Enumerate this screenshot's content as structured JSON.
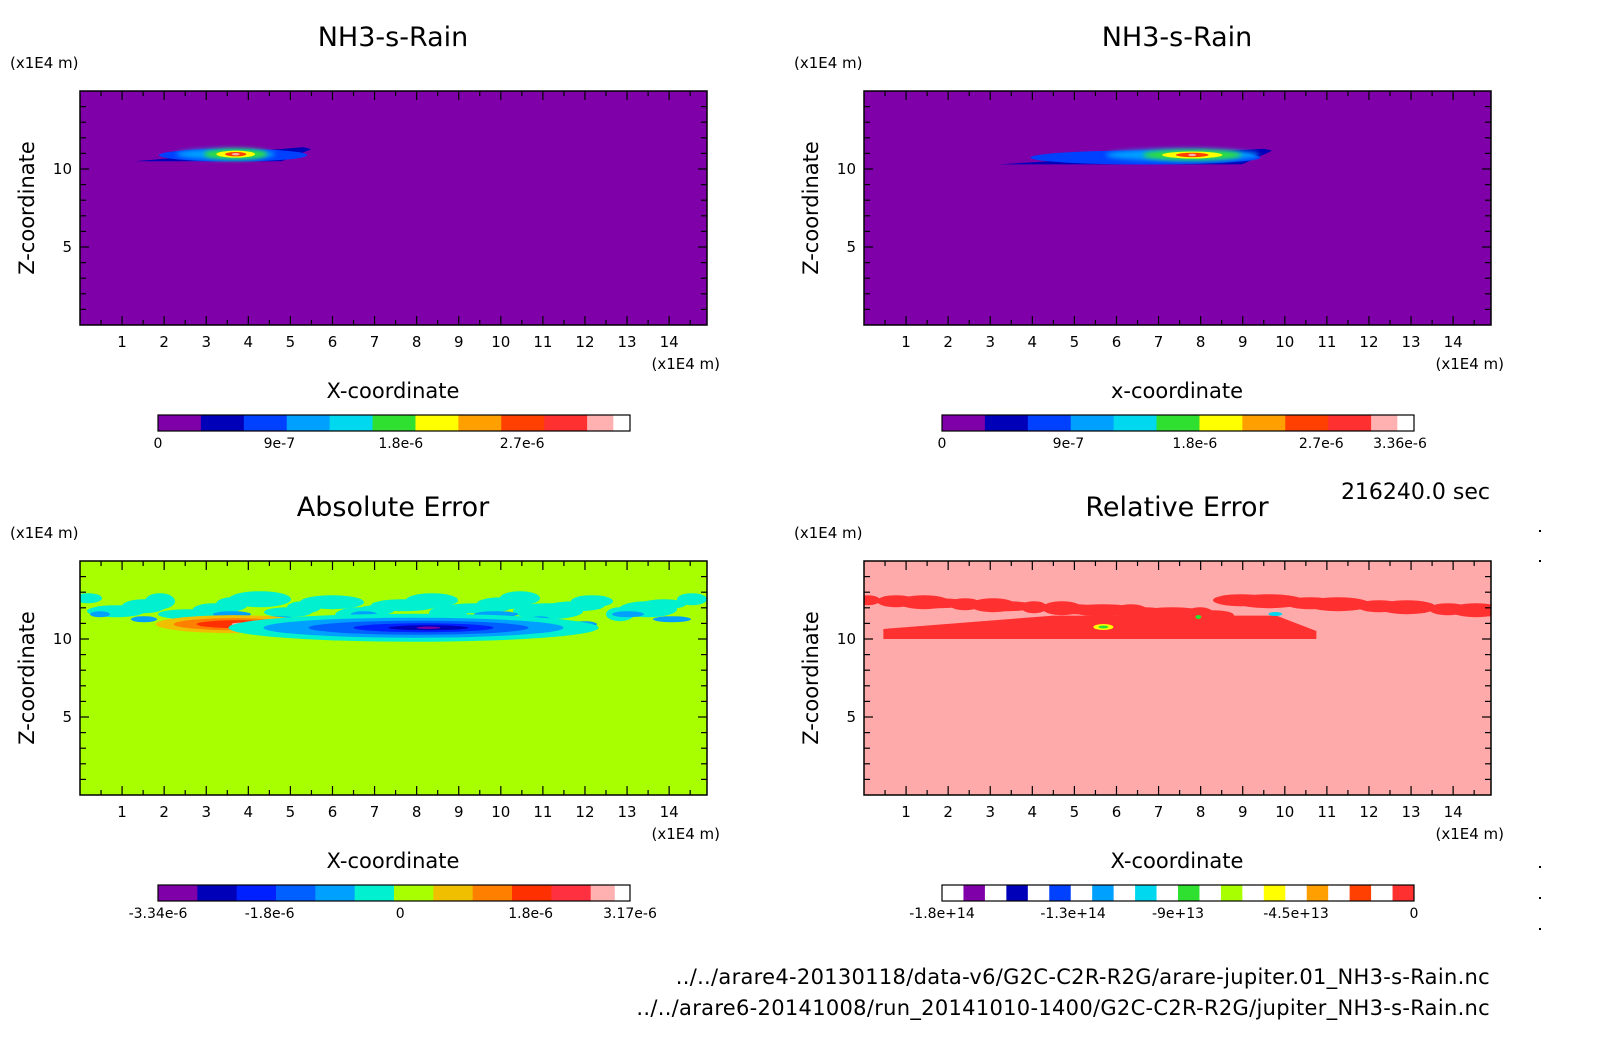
{
  "timestamp": "216240.0 sec",
  "footer": {
    "file1": "../../arare4-20130118/data-v6/G2C-C2R-R2G/arare-jupiter.01_NH3-s-Rain.nc",
    "file2": "../../arare6-20141008/run_20141010-1400/G2C-C2R-R2G/jupiter_NH3-s-Rain.nc"
  },
  "chart_data": [
    {
      "type": "heatmap",
      "title": "NH3-s-Rain",
      "xlabel": "X-coordinate",
      "ylabel": "Z-coordinate",
      "x_unit": "(x1E4 m)",
      "y_unit": "(x1E4 m)",
      "xlim": [
        0,
        14.9
      ],
      "ylim": [
        0,
        15
      ],
      "x_ticks": [
        "1",
        "2",
        "3",
        "4",
        "5",
        "6",
        "7",
        "8",
        "9",
        "10",
        "11",
        "12",
        "13",
        "14"
      ],
      "y_ticks": [
        "5",
        "10"
      ],
      "background": "#7f00a8",
      "colorbar": {
        "colors": [
          "#7f00a8",
          "#0000b8",
          "#0040ff",
          "#00a0ff",
          "#00d8f0",
          "#30e030",
          "#ffff00",
          "#ffa000",
          "#ff4000",
          "#ff3030",
          "#ffb0b0"
        ],
        "tick_labels": [
          "0",
          "9e-7",
          "1.8e-6",
          "2.7e-6"
        ],
        "tick_values": [
          0,
          9e-07,
          1.8e-06,
          2.7e-06
        ],
        "range": [
          0,
          3.5e-06
        ]
      },
      "features": [
        {
          "x": [
            1.3,
            5.5
          ],
          "z": [
            10.5,
            11.4
          ],
          "max": 3.2e-06,
          "center_x": 3.7,
          "center_z": 10.95
        }
      ]
    },
    {
      "type": "heatmap",
      "title": "NH3-s-Rain",
      "xlabel": "x-coordinate",
      "ylabel": "Z-coordinate",
      "x_unit": "(x1E4 m)",
      "y_unit": "(x1E4 m)",
      "xlim": [
        0,
        14.9
      ],
      "ylim": [
        0,
        15
      ],
      "x_ticks": [
        "1",
        "2",
        "3",
        "4",
        "5",
        "6",
        "7",
        "8",
        "9",
        "10",
        "11",
        "12",
        "13",
        "14"
      ],
      "y_ticks": [
        "5",
        "10"
      ],
      "background": "#7f00a8",
      "colorbar": {
        "colors": [
          "#7f00a8",
          "#0000b8",
          "#0040ff",
          "#00a0ff",
          "#00d8f0",
          "#30e030",
          "#ffff00",
          "#ffa000",
          "#ff4000",
          "#ff3030",
          "#ffb0b0"
        ],
        "tick_labels": [
          "0",
          "9e-7",
          "1.8e-6",
          "2.7e-6",
          "3.36e-6"
        ],
        "tick_values": [
          0,
          9e-07,
          1.8e-06,
          2.7e-06,
          3.36e-06
        ],
        "range": [
          0,
          3.36e-06
        ]
      },
      "features": [
        {
          "x": [
            3.2,
            9.7
          ],
          "z": [
            10.3,
            11.3
          ],
          "max": 3.3e-06,
          "center_x": 7.8,
          "center_z": 10.9
        }
      ]
    },
    {
      "type": "heatmap",
      "title": "Absolute Error",
      "xlabel": "X-coordinate",
      "ylabel": "Z-coordinate",
      "x_unit": "(x1E4 m)",
      "y_unit": "(x1E4 m)",
      "xlim": [
        0,
        14.9
      ],
      "ylim": [
        0,
        15
      ],
      "x_ticks": [
        "1",
        "2",
        "3",
        "4",
        "5",
        "6",
        "7",
        "8",
        "9",
        "10",
        "11",
        "12",
        "13",
        "14"
      ],
      "y_ticks": [
        "5",
        "10"
      ],
      "background": "#a8ff00",
      "colorbar": {
        "colors": [
          "#7f00a8",
          "#0000b8",
          "#0020ff",
          "#0060ff",
          "#00a0ff",
          "#00f0d0",
          "#a8ff00",
          "#f0c000",
          "#ff8000",
          "#ff3000",
          "#ff3040",
          "#ffb0b0"
        ],
        "tick_labels": [
          "-3.34e-6",
          "-1.8e-6",
          "0",
          "1.8e-6",
          "3.17e-6"
        ],
        "tick_values": [
          -3.34e-06,
          -1.8e-06,
          0,
          1.8e-06,
          3.17e-06
        ],
        "range": [
          -3.34e-06,
          3.17e-06
        ]
      },
      "features": [
        {
          "x": [
            0,
            14.9
          ],
          "z": [
            11.2,
            13.0
          ],
          "level": "slightly negative"
        },
        {
          "x": [
            2.3,
            5.0
          ],
          "z": [
            10.5,
            11.4
          ],
          "level": "positive peak",
          "max": 3.17e-06
        },
        {
          "x": [
            5.0,
            9.9
          ],
          "z": [
            10.2,
            11.5
          ],
          "level": "negative trough",
          "min": -3.34e-06
        }
      ]
    },
    {
      "type": "heatmap",
      "title": "Relative Error",
      "xlabel": "X-coordinate",
      "ylabel": "Z-coordinate",
      "x_unit": "(x1E4 m)",
      "y_unit": "(x1E4 m)",
      "xlim": [
        0,
        14.9
      ],
      "ylim": [
        0,
        15
      ],
      "x_ticks": [
        "1",
        "2",
        "3",
        "4",
        "5",
        "6",
        "7",
        "8",
        "9",
        "10",
        "11",
        "12",
        "13",
        "14"
      ],
      "y_ticks": [
        "5",
        "10"
      ],
      "background": "#ffaaaa",
      "colorbar": {
        "colors": [
          "#ffffff",
          "#7f00a8",
          "#ffffff",
          "#0000b8",
          "#ffffff",
          "#0040ff",
          "#ffffff",
          "#00a0ff",
          "#ffffff",
          "#00d8f0",
          "#ffffff",
          "#30e030",
          "#ffffff",
          "#a8ff00",
          "#ffffff",
          "#ffff00",
          "#ffffff",
          "#ffa000",
          "#ffffff",
          "#ff4000",
          "#ffffff",
          "#ff3030"
        ],
        "tick_labels": [
          "-1.8e+14",
          "-1.3e+14",
          "-9e+13",
          "-4.5e+13",
          "0"
        ],
        "tick_values": [
          -180000000000000.0,
          -130000000000000.0,
          -90000000000000.0,
          -45000000000000.0,
          0
        ],
        "range": [
          -180000000000000.0,
          0
        ]
      },
      "features": [
        {
          "x": [
            0,
            14.9
          ],
          "z": [
            11.2,
            13.0
          ],
          "level": "near zero"
        },
        {
          "x": [
            4.5,
            9.8
          ],
          "z": [
            10.0,
            11.5
          ],
          "level": "near zero"
        }
      ]
    }
  ]
}
